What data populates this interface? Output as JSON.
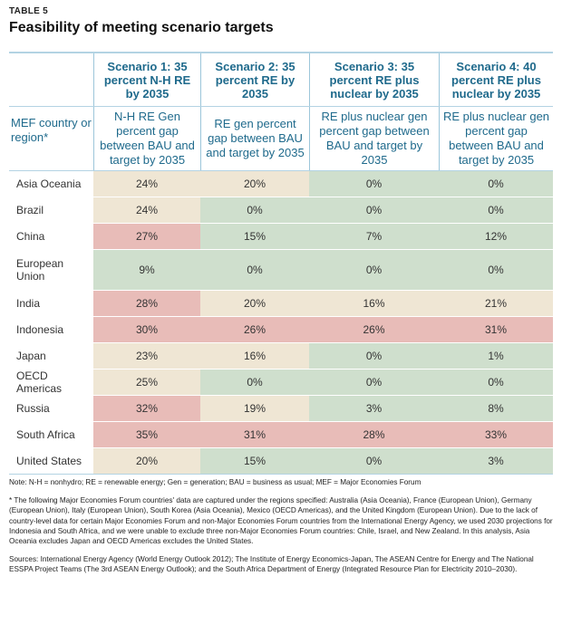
{
  "label": "TABLE 5",
  "title": "Feasibility of meeting scenario targets",
  "header": {
    "s1": "Scenario 1: 35 percent N-H RE by 2035",
    "s2": "Scenario 2: 35 percent RE by 2035",
    "s3": "Scenario 3: 35 percent RE plus nuclear by 2035",
    "s4": "Scenario 4: 40 percent RE plus nuclear by 2035"
  },
  "subheader": {
    "c0": "MEF country or region*",
    "s1": "N-H RE Gen percent gap between BAU and target by 2035",
    "s2": "RE gen percent gap between BAU and target by 2035",
    "s3": "RE plus nuclear gen percent gap between BAU and target by 2035",
    "s4": "RE plus nuclear gen percent gap between BAU and target by 2035"
  },
  "colors": {
    "red": "#e8bcb8",
    "beige": "#efe6d4",
    "green": "#cfdfcd"
  },
  "rows": [
    {
      "region": "Asia Oceania",
      "s1": "24%",
      "s2": "20%",
      "s3": "0%",
      "s4": "0%"
    },
    {
      "region": "Brazil",
      "s1": "24%",
      "s2": "0%",
      "s3": "0%",
      "s4": "0%"
    },
    {
      "region": "China",
      "s1": "27%",
      "s2": "15%",
      "s3": "7%",
      "s4": "12%"
    },
    {
      "region": "European Union",
      "s1": "9%",
      "s2": "0%",
      "s3": "0%",
      "s4": "0%"
    },
    {
      "region": "India",
      "s1": "28%",
      "s2": "20%",
      "s3": "16%",
      "s4": "21%"
    },
    {
      "region": "Indonesia",
      "s1": "30%",
      "s2": "26%",
      "s3": "26%",
      "s4": "31%"
    },
    {
      "region": "Japan",
      "s1": "23%",
      "s2": "16%",
      "s3": "0%",
      "s4": "1%"
    },
    {
      "region": "OECD Americas",
      "s1": "25%",
      "s2": "0%",
      "s3": "0%",
      "s4": "0%"
    },
    {
      "region": "Russia",
      "s1": "32%",
      "s2": "19%",
      "s3": "3%",
      "s4": "8%"
    },
    {
      "region": "South Africa",
      "s1": "35%",
      "s2": "31%",
      "s3": "28%",
      "s4": "33%"
    },
    {
      "region": "United States",
      "s1": "20%",
      "s2": "15%",
      "s3": "0%",
      "s4": "3%"
    }
  ],
  "notes": {
    "note": "Note: N-H = nonhydro; RE = renewable energy; Gen = generation; BAU = business as usual; MEF = Major Economies Forum",
    "footnote": "* The following Major Economies Forum countries' data are captured under the regions specified: Australia (Asia Oceania), France (European Union), Germany (European Union), Italy (European Union), South Korea (Asia Oceania), Mexico (OECD Americas), and the United Kingdom (European Union). Due to the lack of country-level data for certain Major Economies Forum and non-Major Economies Forum countries from the International Energy Agency, we used 2030 projections for Indonesia and South Africa, and we were unable to exclude three non-Major Economies Forum countries: Chile, Israel, and New Zealand. In this analysis, Asia Oceania excludes Japan and OECD Americas excludes the United States.",
    "sources": "Sources: International Energy Agency (World Energy Outlook 2012); The Institute of Energy Economics-Japan, The ASEAN Centre for Energy and The National ESSPA Project Teams (The 3rd ASEAN Energy Outlook); and the South Africa Department of Energy (Integrated Resource Plan for Electricity 2010–2030)."
  }
}
